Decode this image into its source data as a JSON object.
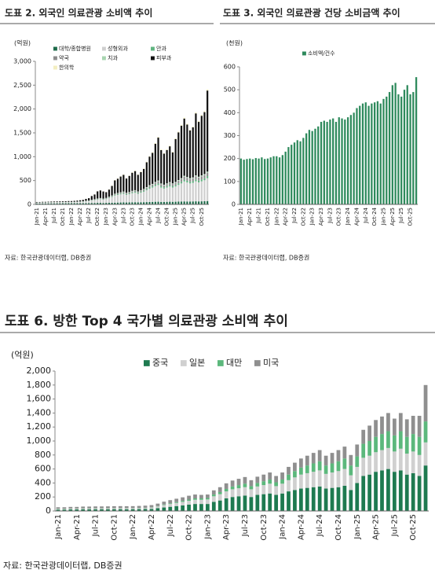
{
  "chart_data": [
    {
      "type": "bar",
      "stacked": true,
      "title": "도표 2. 외국인 의료관광 소비액 추이",
      "y_unit": "(억원)",
      "source": "자료: 한국관광데이터랩, DB증권",
      "categories": [
        "Jan-21",
        null,
        null,
        "Apr-21",
        null,
        null,
        "Jul-21",
        null,
        null,
        "Oct-21",
        null,
        null,
        "Jan-22",
        null,
        null,
        "Apr-22",
        null,
        null,
        "Jul-22",
        null,
        null,
        "Oct-22",
        null,
        null,
        "Jan-23",
        null,
        null,
        "Apr-23",
        null,
        null,
        "Jul-23",
        null,
        null,
        "Oct-23",
        null,
        null,
        "Jan-24",
        null,
        null,
        "Apr-24",
        null,
        null,
        "Jul-24",
        null,
        null,
        "Oct-24",
        null,
        null,
        "Jan-25",
        null,
        null,
        "Apr-25",
        null,
        null,
        "Jul-25",
        null,
        null,
        "Oct-25",
        null,
        null
      ],
      "ylim": [
        0,
        3000
      ],
      "yticks": [
        0,
        500,
        {
          "value": 1000,
          "label": "1,000"
        },
        {
          "value": 1500,
          "label": "1,500"
        },
        {
          "value": 2000,
          "label": "2,000"
        },
        {
          "value": 2500,
          "label": "2,500"
        },
        {
          "value": 3000,
          "label": "3,000"
        }
      ],
      "series": [
        {
          "name": "대학/종합병원",
          "color": "#1e6b4a",
          "values": [
            20,
            20,
            21,
            21,
            22,
            22,
            22,
            23,
            23,
            24,
            24,
            25,
            25,
            25,
            26,
            26,
            27,
            28,
            28,
            30,
            30,
            32,
            32,
            30,
            32,
            33,
            35,
            36,
            38,
            40,
            42,
            40,
            42,
            44,
            45,
            42,
            45,
            46,
            48,
            50,
            52,
            55,
            56,
            52,
            52,
            54,
            56,
            54,
            56,
            58,
            60,
            62,
            60,
            60,
            62,
            64,
            62,
            64,
            66,
            70
          ]
        },
        {
          "name": "성형외과",
          "color": "#cfcfcf",
          "values": [
            15,
            15,
            16,
            16,
            17,
            17,
            18,
            18,
            18,
            19,
            20,
            20,
            20,
            22,
            24,
            26,
            28,
            35,
            40,
            50,
            60,
            70,
            80,
            70,
            80,
            100,
            120,
            150,
            160,
            170,
            180,
            160,
            170,
            190,
            200,
            180,
            200,
            220,
            250,
            280,
            300,
            330,
            350,
            300,
            280,
            300,
            320,
            300,
            320,
            350,
            380,
            420,
            400,
            380,
            390,
            420,
            400,
            420,
            440,
            480
          ]
        },
        {
          "name": "안과",
          "color": "#5fb47f",
          "values": [
            2,
            2,
            2,
            2,
            3,
            3,
            3,
            3,
            3,
            3,
            3,
            3,
            3,
            3,
            3,
            4,
            4,
            5,
            5,
            6,
            7,
            8,
            8,
            8,
            9,
            10,
            12,
            14,
            15,
            16,
            16,
            15,
            16,
            17,
            18,
            17,
            18,
            20,
            22,
            24,
            26,
            28,
            30,
            28,
            27,
            28,
            30,
            28,
            30,
            32,
            34,
            36,
            35,
            34,
            35,
            38,
            36,
            38,
            40,
            42
          ]
        },
        {
          "name": "약국",
          "color": "#8c8c8c",
          "values": [
            1,
            1,
            1,
            1,
            1,
            1,
            2,
            2,
            2,
            2,
            2,
            2,
            2,
            2,
            3,
            3,
            3,
            4,
            5,
            6,
            7,
            8,
            9,
            8,
            10,
            12,
            14,
            16,
            18,
            20,
            22,
            20,
            22,
            24,
            25,
            23,
            25,
            28,
            32,
            36,
            40,
            45,
            50,
            45,
            42,
            45,
            48,
            45,
            50,
            55,
            60,
            65,
            62,
            60,
            62,
            68,
            65,
            68,
            70,
            75
          ]
        },
        {
          "name": "치과",
          "color": "#a8d5b0",
          "values": [
            2,
            2,
            2,
            2,
            2,
            2,
            2,
            2,
            2,
            2,
            2,
            2,
            2,
            2,
            2,
            3,
            3,
            3,
            3,
            4,
            4,
            5,
            5,
            5,
            5,
            6,
            6,
            7,
            8,
            8,
            9,
            8,
            8,
            9,
            10,
            9,
            10,
            10,
            11,
            12,
            12,
            13,
            14,
            13,
            12,
            13,
            14,
            13,
            14,
            15,
            16,
            17,
            16,
            16,
            16,
            18,
            17,
            18,
            19,
            20
          ]
        },
        {
          "name": "피부과",
          "color": "#111111",
          "values": [
            10,
            10,
            12,
            12,
            12,
            14,
            14,
            14,
            15,
            15,
            16,
            18,
            18,
            20,
            22,
            25,
            30,
            40,
            50,
            80,
            100,
            150,
            160,
            150,
            120,
            150,
            200,
            280,
            300,
            330,
            350,
            300,
            340,
            380,
            400,
            350,
            380,
            420,
            520,
            600,
            650,
            800,
            900,
            700,
            650,
            700,
            750,
            650,
            900,
            1000,
            1100,
            1200,
            1100,
            1000,
            1050,
            1300,
            1150,
            1250,
            1300,
            1700
          ]
        },
        {
          "name": "한의학",
          "color": "#f3eec0",
          "values": [
            1,
            1,
            1,
            1,
            1,
            1,
            1,
            1,
            1,
            1,
            1,
            1,
            1,
            1,
            1,
            1,
            1,
            2,
            2,
            2,
            3,
            3,
            3,
            3,
            4,
            5,
            6,
            7,
            8,
            8,
            9,
            8,
            8,
            9,
            10,
            9,
            10,
            11,
            12,
            13,
            14,
            15,
            16,
            14,
            14,
            15,
            16,
            15,
            16,
            17,
            18,
            20,
            19,
            18,
            19,
            21,
            20,
            21,
            22,
            24
          ]
        }
      ]
    },
    {
      "type": "bar",
      "stacked": false,
      "title": "도표 3. 외국인 의료관광 건당 소비금액 추이",
      "y_unit": "(천원)",
      "source": "자료: 한국관광데이터랩, DB증권",
      "categories": [
        "Jan-21",
        null,
        null,
        "Apr-21",
        null,
        null,
        "Jul-21",
        null,
        null,
        "Oct-21",
        null,
        null,
        "Jan-22",
        null,
        null,
        "Apr-22",
        null,
        null,
        "Jul-22",
        null,
        null,
        "Oct-22",
        null,
        null,
        "Jan-23",
        null,
        null,
        "Apr-23",
        null,
        null,
        "Jul-23",
        null,
        null,
        "Oct-23",
        null,
        null,
        "Jan-24",
        null,
        null,
        "Apr-24",
        null,
        null,
        "Jul-24",
        null,
        null,
        "Oct-24",
        null,
        null,
        "Jan-25",
        null,
        null,
        "Apr-25",
        null,
        null,
        "Jul-25",
        null,
        null,
        "Oct-25",
        null,
        null
      ],
      "ylim": [
        0,
        600
      ],
      "yticks": [
        0,
        100,
        200,
        300,
        400,
        500,
        600
      ],
      "series": [
        {
          "name": "소비액/건수",
          "color": "#2e8a5c",
          "values": [
            200,
            195,
            198,
            200,
            197,
            202,
            200,
            205,
            198,
            200,
            205,
            210,
            210,
            205,
            215,
            230,
            250,
            260,
            270,
            280,
            275,
            290,
            310,
            325,
            320,
            330,
            340,
            360,
            365,
            360,
            370,
            375,
            360,
            380,
            375,
            370,
            380,
            390,
            400,
            420,
            430,
            440,
            445,
            430,
            440,
            445,
            450,
            440,
            460,
            470,
            490,
            520,
            530,
            480,
            470,
            500,
            520,
            480,
            490,
            555
          ]
        }
      ]
    },
    {
      "type": "bar",
      "stacked": true,
      "title": "도표 6. 방한 Top 4 국가별 의료관광 소비액 추이",
      "y_unit": "(억원)",
      "source": "자료: 한국관광데이터랩, DB증권",
      "categories": [
        "Jan-21",
        null,
        null,
        "Apr-21",
        null,
        null,
        "Jul-21",
        null,
        null,
        "Oct-21",
        null,
        null,
        "Jan-22",
        null,
        null,
        "Apr-22",
        null,
        null,
        "Jul-22",
        null,
        null,
        "Oct-22",
        null,
        null,
        "Jan-23",
        null,
        null,
        "Apr-23",
        null,
        null,
        "Jul-23",
        null,
        null,
        "Oct-23",
        null,
        null,
        "Jan-24",
        null,
        null,
        "Apr-24",
        null,
        null,
        "Jul-24",
        null,
        null,
        "Oct-24",
        null,
        null,
        "Jan-25",
        null,
        null,
        "Apr-25",
        null,
        null,
        "Jul-25",
        null,
        null,
        "Oct-25",
        null,
        null
      ],
      "ylim": [
        0,
        2000
      ],
      "yticks": [
        0,
        200,
        400,
        600,
        800,
        {
          "value": 1000,
          "label": "1,000"
        },
        {
          "value": 1200,
          "label": "1,200"
        },
        {
          "value": 1400,
          "label": "1,400"
        },
        {
          "value": 1600,
          "label": "1,600"
        },
        {
          "value": 1800,
          "label": "1,800"
        },
        {
          "value": 2000,
          "label": "2,000"
        }
      ],
      "series": [
        {
          "name": "중국",
          "color": "#1e7a50",
          "values": [
            20,
            20,
            22,
            22,
            24,
            24,
            25,
            25,
            25,
            26,
            26,
            25,
            26,
            27,
            28,
            30,
            40,
            50,
            60,
            70,
            80,
            90,
            100,
            100,
            100,
            130,
            150,
            180,
            200,
            210,
            220,
            200,
            230,
            240,
            250,
            230,
            250,
            280,
            300,
            320,
            330,
            340,
            350,
            320,
            330,
            340,
            360,
            300,
            400,
            500,
            520,
            560,
            580,
            600,
            560,
            580,
            520,
            540,
            500,
            650
          ]
        },
        {
          "name": "일본",
          "color": "#d0d0d0",
          "values": [
            10,
            10,
            11,
            11,
            12,
            12,
            12,
            12,
            12,
            13,
            13,
            13,
            13,
            14,
            15,
            18,
            25,
            35,
            40,
            45,
            50,
            55,
            60,
            60,
            65,
            80,
            90,
            100,
            110,
            115,
            120,
            110,
            120,
            130,
            140,
            125,
            140,
            160,
            180,
            200,
            210,
            220,
            230,
            210,
            220,
            230,
            240,
            210,
            230,
            260,
            270,
            280,
            290,
            300,
            290,
            310,
            300,
            310,
            300,
            330
          ]
        },
        {
          "name": "대만",
          "color": "#5cb87c",
          "values": [
            3,
            3,
            3,
            3,
            3,
            3,
            3,
            3,
            3,
            3,
            3,
            3,
            3,
            3,
            3,
            4,
            5,
            8,
            10,
            12,
            15,
            18,
            20,
            20,
            20,
            25,
            30,
            35,
            40,
            45,
            50,
            45,
            50,
            55,
            60,
            55,
            60,
            80,
            90,
            100,
            110,
            120,
            130,
            120,
            130,
            140,
            150,
            140,
            150,
            200,
            210,
            220,
            230,
            240,
            230,
            250,
            240,
            250,
            260,
            300
          ]
        },
        {
          "name": "미국",
          "color": "#8f8f8f",
          "values": [
            20,
            20,
            22,
            22,
            24,
            24,
            25,
            25,
            26,
            26,
            27,
            27,
            27,
            28,
            30,
            32,
            35,
            40,
            45,
            48,
            50,
            55,
            55,
            50,
            50,
            60,
            70,
            80,
            85,
            90,
            95,
            85,
            90,
            95,
            100,
            90,
            100,
            110,
            120,
            130,
            140,
            150,
            160,
            140,
            150,
            160,
            170,
            150,
            170,
            200,
            220,
            240,
            250,
            260,
            240,
            260,
            250,
            260,
            300,
            520
          ]
        }
      ]
    }
  ]
}
